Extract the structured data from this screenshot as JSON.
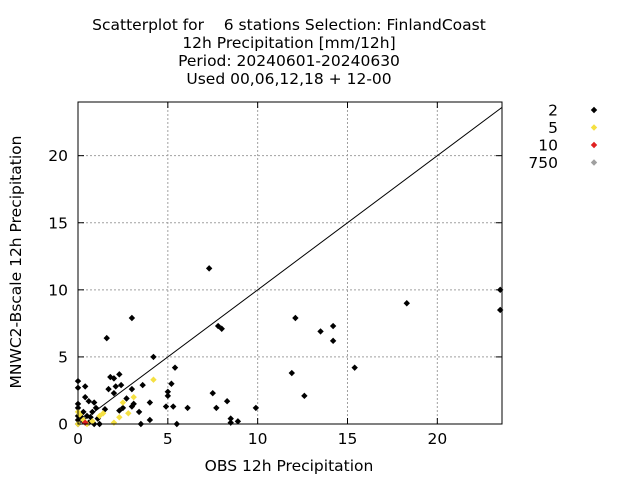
{
  "chart_data": {
    "type": "scatter",
    "title_lines": [
      "Scatterplot for    6 stations Selection: FinlandCoast",
      "12h Precipitation [mm/12h]",
      "Period: 20240601-20240630",
      "Used 00,06,12,18 + 12-00"
    ],
    "xlabel": "OBS 12h Precipitation",
    "ylabel": "MNWC2-Bscale 12h Precipitation",
    "xlim": [
      0,
      23.6
    ],
    "ylim": [
      0,
      24
    ],
    "xticks": [
      0,
      5,
      10,
      15,
      20
    ],
    "yticks": [
      0,
      5,
      10,
      15,
      20
    ],
    "grid": true,
    "diagonal_line": true,
    "legend_position": "outside-right",
    "series": [
      {
        "name": "2",
        "color": "#000000",
        "points": [
          [
            7.3,
            11.6
          ],
          [
            23.5,
            10.0
          ],
          [
            18.3,
            9.0
          ],
          [
            23.5,
            8.5
          ],
          [
            3.0,
            7.9
          ],
          [
            12.1,
            7.9
          ],
          [
            7.8,
            7.3
          ],
          [
            8.0,
            7.1
          ],
          [
            14.2,
            7.3
          ],
          [
            13.5,
            6.9
          ],
          [
            14.2,
            6.2
          ],
          [
            1.6,
            6.4
          ],
          [
            4.2,
            5.0
          ],
          [
            15.4,
            4.2
          ],
          [
            5.4,
            4.2
          ],
          [
            11.9,
            3.8
          ],
          [
            1.8,
            3.5
          ],
          [
            2.0,
            3.4
          ],
          [
            2.3,
            3.7
          ],
          [
            0.0,
            3.2
          ],
          [
            0.0,
            2.7
          ],
          [
            0.4,
            2.8
          ],
          [
            1.7,
            2.6
          ],
          [
            2.1,
            2.8
          ],
          [
            2.4,
            2.9
          ],
          [
            3.0,
            2.6
          ],
          [
            3.6,
            2.9
          ],
          [
            5.2,
            3.0
          ],
          [
            2.0,
            2.3
          ],
          [
            0.4,
            2.0
          ],
          [
            0.6,
            1.7
          ],
          [
            0.9,
            1.6
          ],
          [
            2.7,
            1.9
          ],
          [
            3.1,
            1.5
          ],
          [
            2.5,
            1.2
          ],
          [
            3.0,
            1.3
          ],
          [
            4.0,
            1.6
          ],
          [
            5.0,
            2.4
          ],
          [
            5.0,
            2.1
          ],
          [
            7.5,
            2.3
          ],
          [
            12.6,
            2.1
          ],
          [
            8.3,
            1.7
          ],
          [
            0.0,
            1.5
          ],
          [
            0.0,
            1.2
          ],
          [
            1.0,
            1.2
          ],
          [
            1.5,
            1.1
          ],
          [
            2.3,
            1.0
          ],
          [
            3.4,
            0.9
          ],
          [
            4.9,
            1.3
          ],
          [
            5.3,
            1.3
          ],
          [
            6.1,
            1.2
          ],
          [
            7.7,
            1.2
          ],
          [
            9.9,
            1.2
          ],
          [
            0.3,
            0.9
          ],
          [
            0.8,
            0.9
          ],
          [
            0.0,
            0.6
          ],
          [
            0.2,
            0.5
          ],
          [
            0.5,
            0.6
          ],
          [
            0.7,
            0.5
          ],
          [
            1.1,
            0.4
          ],
          [
            0.0,
            0.3
          ],
          [
            0.3,
            0.2
          ],
          [
            0.6,
            0.1
          ],
          [
            1.2,
            0.0
          ],
          [
            3.5,
            0.0
          ],
          [
            4.0,
            0.3
          ],
          [
            5.5,
            0.0
          ],
          [
            8.5,
            0.4
          ],
          [
            8.5,
            0.1
          ],
          [
            8.9,
            0.2
          ],
          [
            0.0,
            0.0
          ],
          [
            0.9,
            0.0
          ]
        ]
      },
      {
        "name": "5",
        "color": "#f5e042",
        "points": [
          [
            4.2,
            3.3
          ],
          [
            3.1,
            2.0
          ],
          [
            2.5,
            1.6
          ],
          [
            0.0,
            0.9
          ],
          [
            0.1,
            0.7
          ],
          [
            0.3,
            0.3
          ],
          [
            1.2,
            0.6
          ],
          [
            1.4,
            0.8
          ],
          [
            2.3,
            0.5
          ],
          [
            2.8,
            0.8
          ],
          [
            0.5,
            0.0
          ],
          [
            0.8,
            0.2
          ],
          [
            2.0,
            0.1
          ],
          [
            0.0,
            0.0
          ]
        ]
      },
      {
        "name": "10",
        "color": "#e02020",
        "points": [
          [
            0.4,
            0.1
          ]
        ]
      },
      {
        "name": "750",
        "color": "#a0a0a0",
        "points": []
      }
    ]
  }
}
